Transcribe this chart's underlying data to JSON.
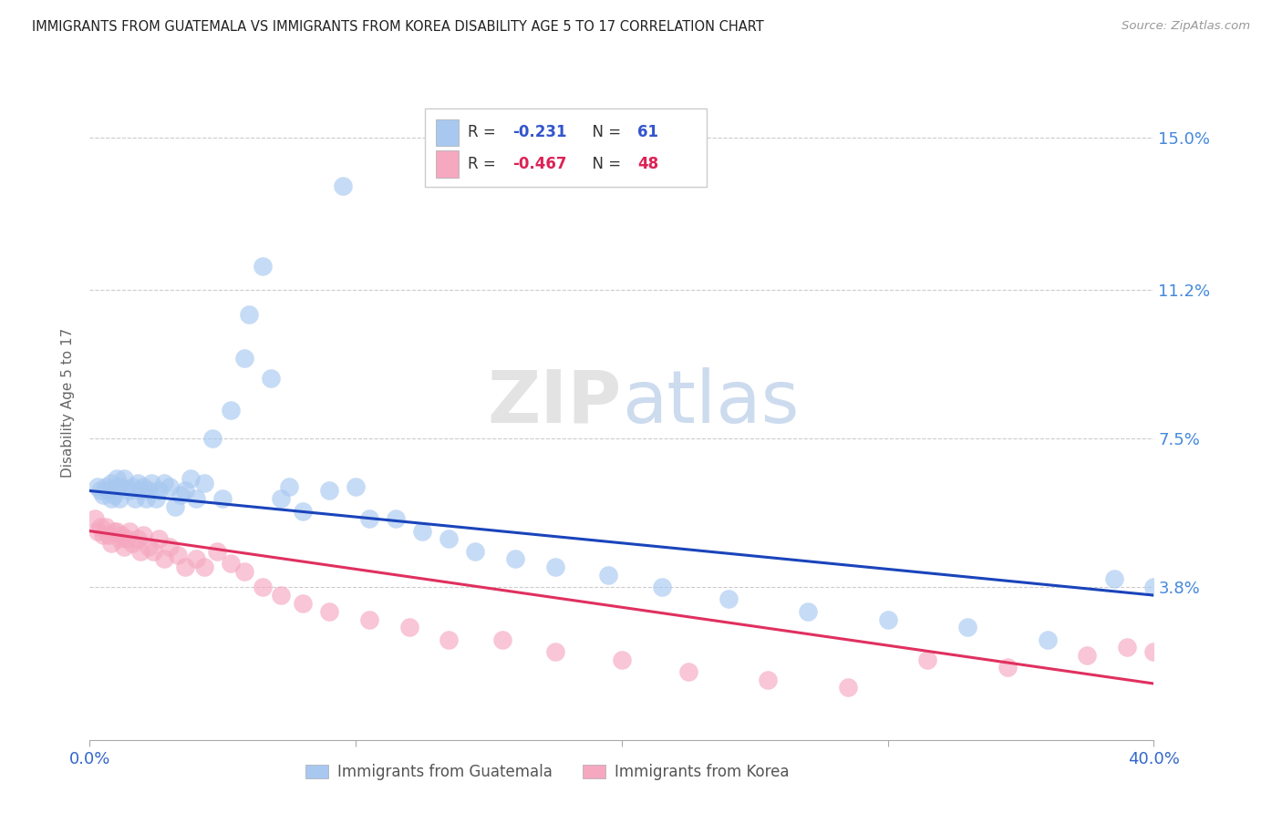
{
  "title": "IMMIGRANTS FROM GUATEMALA VS IMMIGRANTS FROM KOREA DISABILITY AGE 5 TO 17 CORRELATION CHART",
  "source": "Source: ZipAtlas.com",
  "ylabel": "Disability Age 5 to 17",
  "ytick_labels": [
    "15.0%",
    "11.2%",
    "7.5%",
    "3.8%"
  ],
  "ytick_values": [
    0.15,
    0.112,
    0.075,
    0.038
  ],
  "xlim": [
    0.0,
    0.4
  ],
  "ylim": [
    0.0,
    0.168
  ],
  "legend_r1": "R = -0.231",
  "legend_n1": "N =  61",
  "legend_r2": "R = -0.467",
  "legend_n2": "N =  48",
  "watermark": "ZIPatlas",
  "blue_color": "#a8c8f0",
  "pink_color": "#f5a8c0",
  "blue_line_color": "#1a44bb",
  "pink_line_color": "#e03060",
  "guat_x": [
    0.003,
    0.004,
    0.005,
    0.006,
    0.007,
    0.008,
    0.008,
    0.009,
    0.01,
    0.01,
    0.011,
    0.012,
    0.013,
    0.015,
    0.016,
    0.017,
    0.018,
    0.019,
    0.02,
    0.021,
    0.022,
    0.023,
    0.025,
    0.026,
    0.028,
    0.03,
    0.032,
    0.034,
    0.036,
    0.038,
    0.04,
    0.043,
    0.046,
    0.05,
    0.053,
    0.058,
    0.06,
    0.065,
    0.068,
    0.072,
    0.075,
    0.08,
    0.09,
    0.095,
    0.1,
    0.105,
    0.115,
    0.125,
    0.135,
    0.145,
    0.16,
    0.175,
    0.195,
    0.215,
    0.24,
    0.27,
    0.3,
    0.33,
    0.36,
    0.385,
    0.4
  ],
  "guat_y": [
    0.063,
    0.062,
    0.061,
    0.063,
    0.062,
    0.064,
    0.06,
    0.061,
    0.063,
    0.065,
    0.06,
    0.063,
    0.065,
    0.062,
    0.063,
    0.06,
    0.064,
    0.062,
    0.063,
    0.06,
    0.062,
    0.064,
    0.06,
    0.062,
    0.064,
    0.063,
    0.058,
    0.061,
    0.062,
    0.065,
    0.06,
    0.064,
    0.075,
    0.06,
    0.082,
    0.095,
    0.106,
    0.118,
    0.09,
    0.06,
    0.063,
    0.057,
    0.062,
    0.138,
    0.063,
    0.055,
    0.055,
    0.052,
    0.05,
    0.047,
    0.045,
    0.043,
    0.041,
    0.038,
    0.035,
    0.032,
    0.03,
    0.028,
    0.025,
    0.04,
    0.038
  ],
  "korea_x": [
    0.002,
    0.003,
    0.004,
    0.005,
    0.006,
    0.007,
    0.008,
    0.009,
    0.01,
    0.011,
    0.012,
    0.013,
    0.014,
    0.015,
    0.016,
    0.018,
    0.019,
    0.02,
    0.022,
    0.024,
    0.026,
    0.028,
    0.03,
    0.033,
    0.036,
    0.04,
    0.043,
    0.048,
    0.053,
    0.058,
    0.065,
    0.072,
    0.08,
    0.09,
    0.105,
    0.12,
    0.135,
    0.155,
    0.175,
    0.2,
    0.225,
    0.255,
    0.285,
    0.315,
    0.345,
    0.375,
    0.39,
    0.4
  ],
  "korea_y": [
    0.055,
    0.052,
    0.053,
    0.051,
    0.053,
    0.051,
    0.049,
    0.052,
    0.052,
    0.05,
    0.051,
    0.048,
    0.05,
    0.052,
    0.049,
    0.05,
    0.047,
    0.051,
    0.048,
    0.047,
    0.05,
    0.045,
    0.048,
    0.046,
    0.043,
    0.045,
    0.043,
    0.047,
    0.044,
    0.042,
    0.038,
    0.036,
    0.034,
    0.032,
    0.03,
    0.028,
    0.025,
    0.025,
    0.022,
    0.02,
    0.017,
    0.015,
    0.013,
    0.02,
    0.018,
    0.021,
    0.023,
    0.022
  ]
}
